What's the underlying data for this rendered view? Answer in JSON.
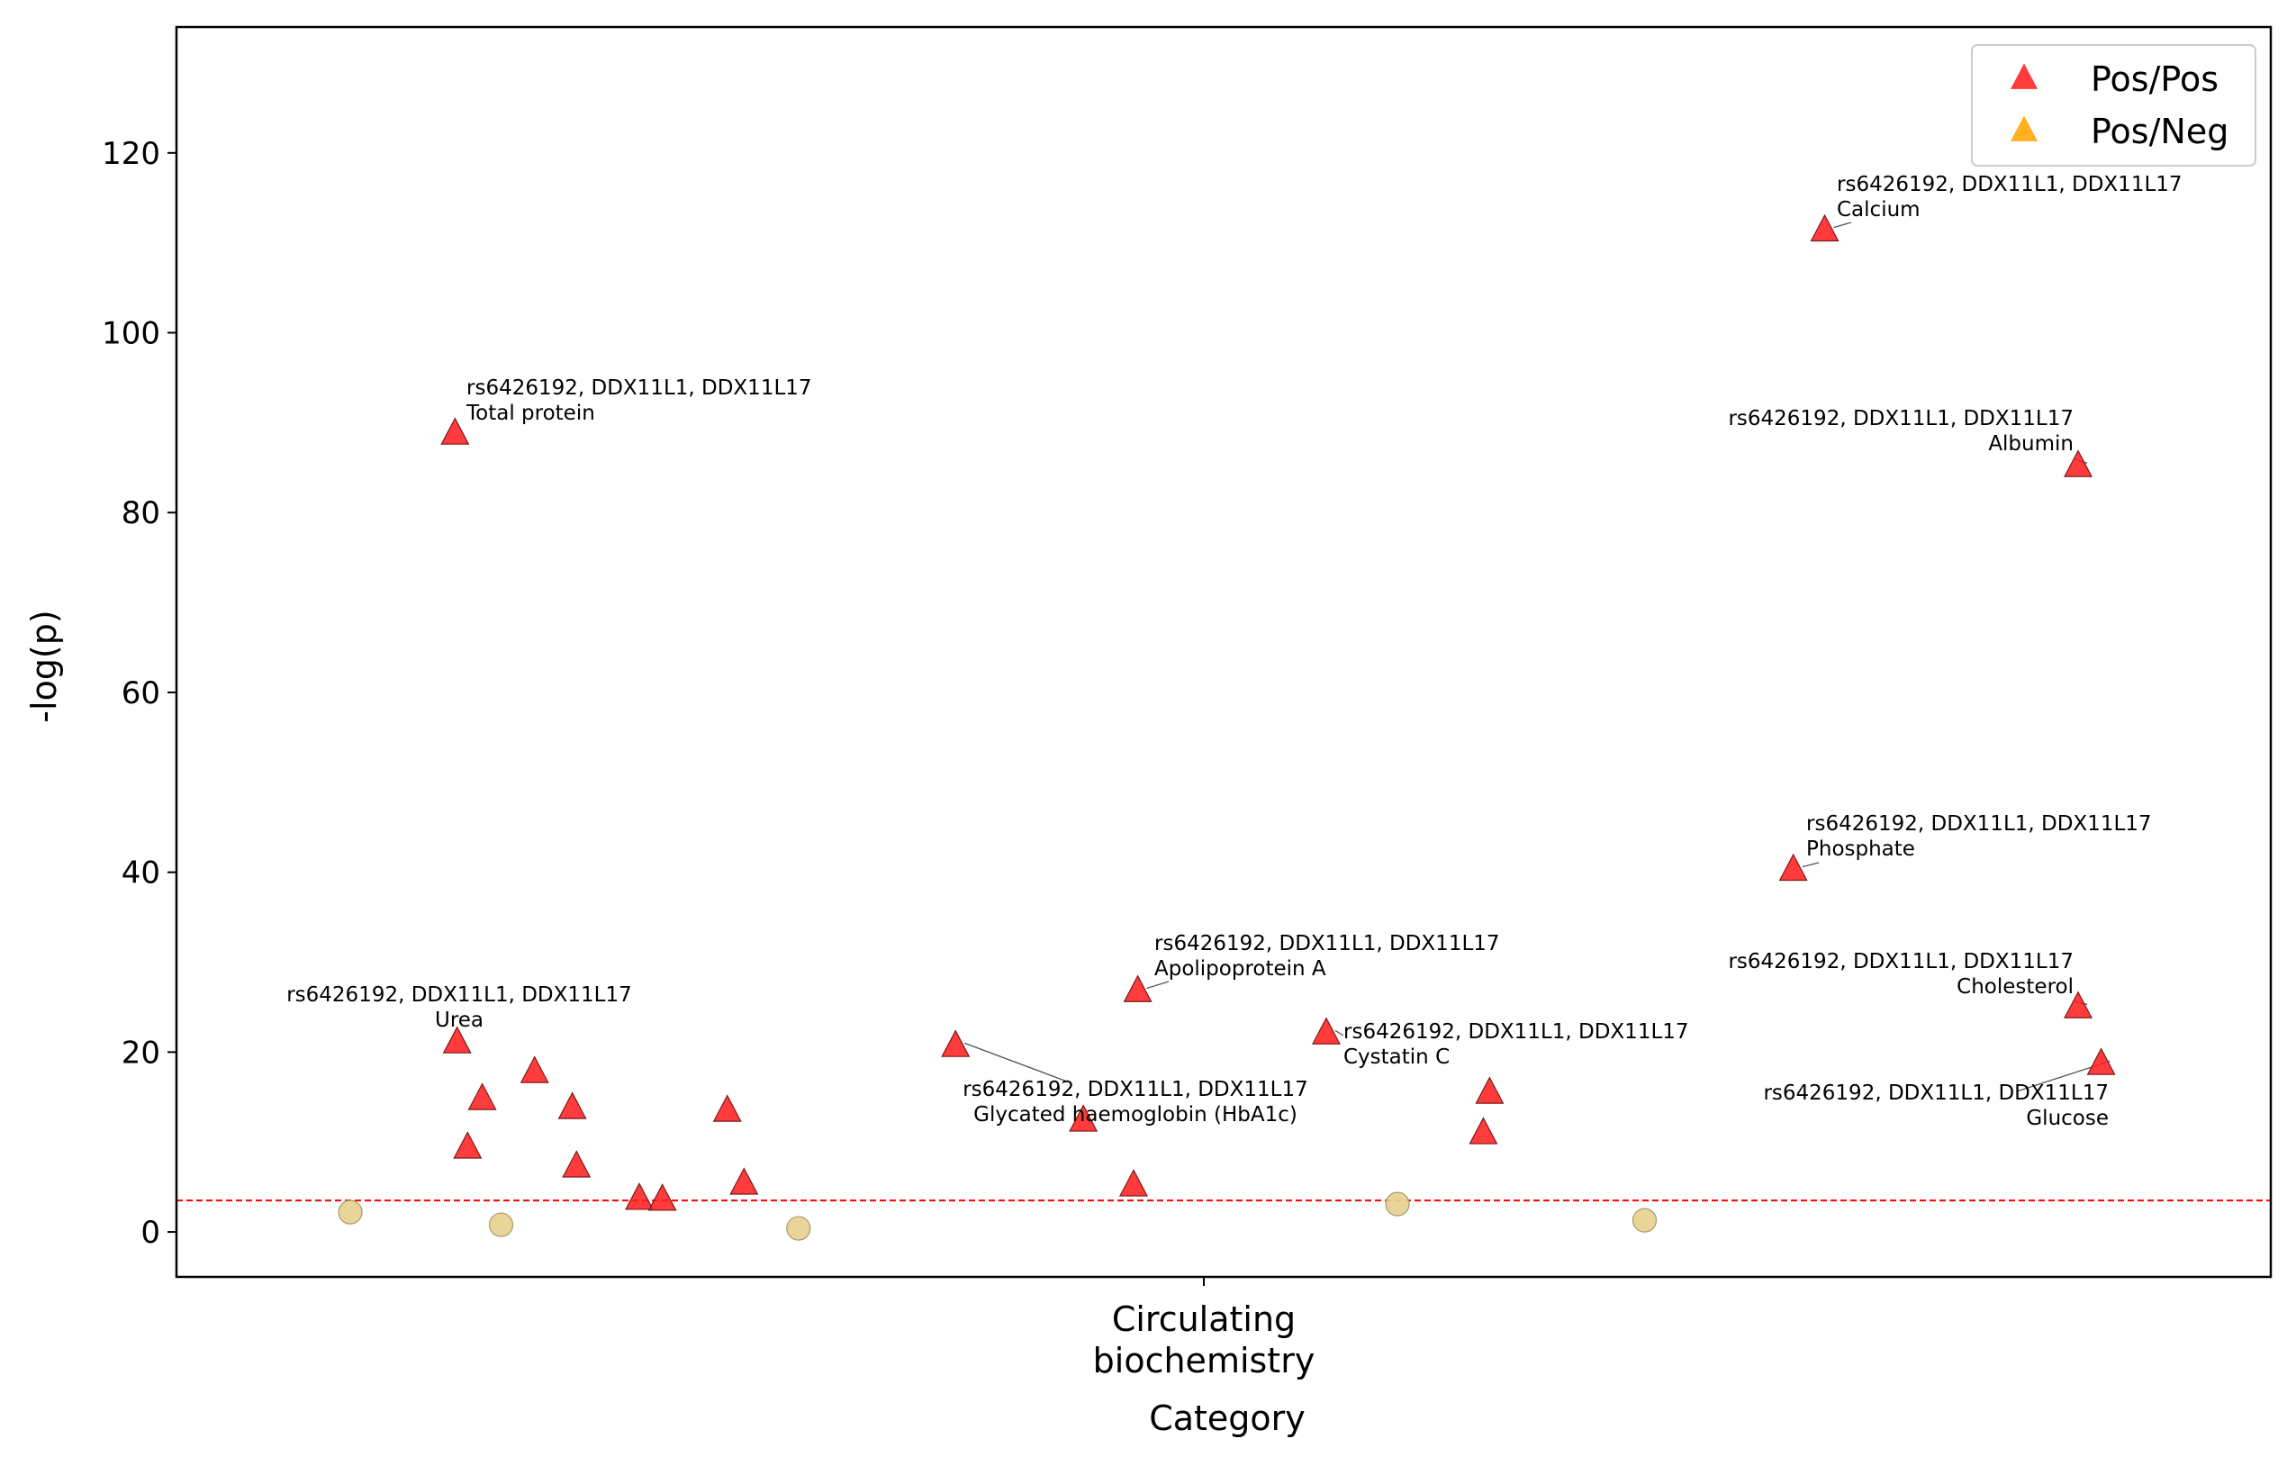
{
  "chart_data": {
    "type": "scatter",
    "xlabel": "Category",
    "ylabel": "-log(p)",
    "x_tick_label": "Circulating\nbiochemistry",
    "ylim": [
      -5,
      134
    ],
    "yticks": [
      0,
      20,
      40,
      60,
      80,
      100,
      120
    ],
    "threshold": 3.5,
    "threshold_color": "#ff0000",
    "grid": false,
    "legend_position": "top-right",
    "series": [
      {
        "name": "Pos/Pos",
        "marker": "triangle",
        "color": "#ff2020",
        "points": [
          {
            "x": 0.133,
            "y": 88.7
          },
          {
            "x": 0.134,
            "y": 21.0
          },
          {
            "x": 0.139,
            "y": 9.3
          },
          {
            "x": 0.146,
            "y": 14.7
          },
          {
            "x": 0.171,
            "y": 17.7
          },
          {
            "x": 0.189,
            "y": 13.7
          },
          {
            "x": 0.191,
            "y": 7.2
          },
          {
            "x": 0.221,
            "y": 3.6
          },
          {
            "x": 0.232,
            "y": 3.5
          },
          {
            "x": 0.263,
            "y": 13.4
          },
          {
            "x": 0.271,
            "y": 5.3
          },
          {
            "x": 0.372,
            "y": 20.6
          },
          {
            "x": 0.433,
            "y": 12.3
          },
          {
            "x": 0.457,
            "y": 5.1
          },
          {
            "x": 0.459,
            "y": 26.7
          },
          {
            "x": 0.549,
            "y": 22.0
          },
          {
            "x": 0.624,
            "y": 10.9
          },
          {
            "x": 0.627,
            "y": 15.4
          },
          {
            "x": 0.772,
            "y": 40.2
          },
          {
            "x": 0.787,
            "y": 111.3
          },
          {
            "x": 0.908,
            "y": 85.1
          },
          {
            "x": 0.908,
            "y": 24.9
          },
          {
            "x": 0.919,
            "y": 18.6
          }
        ]
      },
      {
        "name": "Pos/Neg",
        "marker": "triangle",
        "color": "#ffa500",
        "points": []
      },
      {
        "marker": "circle",
        "color": "#e8d08e",
        "points": [
          {
            "x": 0.083,
            "y": 2.2
          },
          {
            "x": 0.155,
            "y": 0.8
          },
          {
            "x": 0.297,
            "y": 0.4
          },
          {
            "x": 0.583,
            "y": 3.1
          },
          {
            "x": 0.701,
            "y": 1.3
          }
        ]
      }
    ],
    "annotations": [
      {
        "snp": "rs6426192, DDX11L1, DDX11L17",
        "trait": "Total protein",
        "x": 0.133,
        "y": 88.7
      },
      {
        "snp": "rs6426192, DDX11L1, DDX11L17",
        "trait": "Urea",
        "x": 0.134,
        "y": 21.0
      },
      {
        "snp": "rs6426192, DDX11L1, DDX11L17",
        "trait": "Glycated haemoglobin (HbA1c)",
        "x": 0.372,
        "y": 20.6
      },
      {
        "snp": "rs6426192, DDX11L1, DDX11L17",
        "trait": "Apolipoprotein A",
        "x": 0.459,
        "y": 26.7
      },
      {
        "snp": "rs6426192, DDX11L1, DDX11L17",
        "trait": "Cystatin C",
        "x": 0.549,
        "y": 22.0
      },
      {
        "snp": "rs6426192, DDX11L1, DDX11L17",
        "trait": "Phosphate",
        "x": 0.772,
        "y": 40.2
      },
      {
        "snp": "rs6426192, DDX11L1, DDX11L17",
        "trait": "Calcium",
        "x": 0.787,
        "y": 111.3
      },
      {
        "snp": "rs6426192, DDX11L1, DDX11L17",
        "trait": "Albumin",
        "x": 0.908,
        "y": 85.1
      },
      {
        "snp": "rs6426192, DDX11L1, DDX11L17",
        "trait": "Cholesterol",
        "x": 0.908,
        "y": 24.9
      },
      {
        "snp": "rs6426192, DDX11L1, DDX11L17",
        "trait": "Glucose",
        "x": 0.919,
        "y": 18.6
      }
    ]
  }
}
